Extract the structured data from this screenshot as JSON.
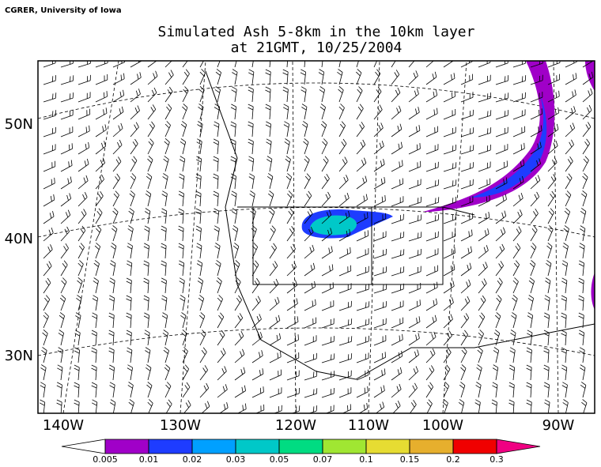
{
  "header": {
    "credit": "CGRER, University of Iowa",
    "title_line1": "Simulated Ash 5-8km in the 10km layer",
    "title_line2": "at 21GMT, 10/25/2004"
  },
  "map": {
    "lat_labels": [
      "50N",
      "40N",
      "30N"
    ],
    "lon_labels": [
      "140W",
      "130W",
      "120W",
      "110W",
      "100W",
      "90W"
    ]
  },
  "colorbar": {
    "levels": [
      0.005,
      0.01,
      0.02,
      0.03,
      0.05,
      0.07,
      0.1,
      0.15,
      0.2,
      0.3
    ],
    "colors": [
      "#ffffff",
      "#a000c8",
      "#1e3cff",
      "#00a0ff",
      "#00c8c8",
      "#00dc82",
      "#a0e632",
      "#e6dc32",
      "#e6af2d",
      "#f00000",
      "#f00082"
    ]
  }
}
